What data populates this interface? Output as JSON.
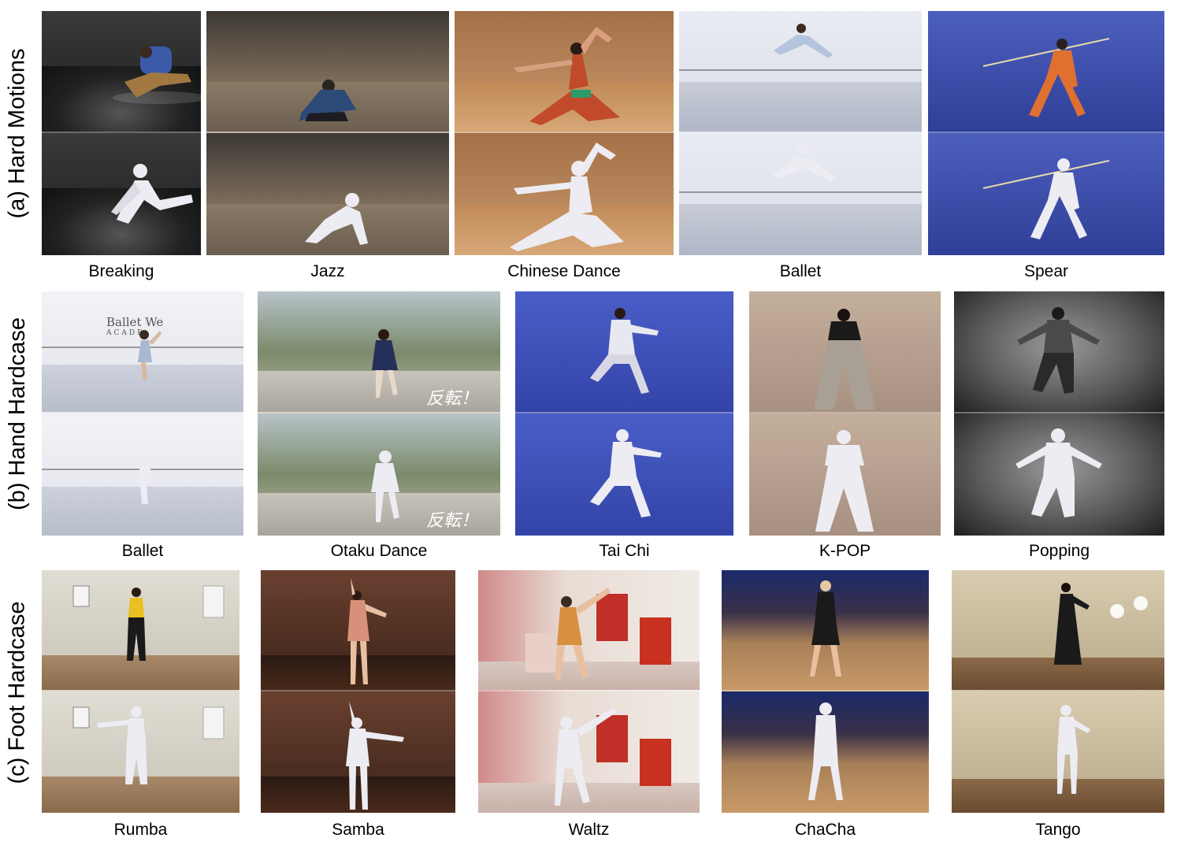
{
  "rows": [
    {
      "label": "(a) Hard Motions",
      "tiles": [
        {
          "caption": "Breaking"
        },
        {
          "caption": "Jazz"
        },
        {
          "caption": "Chinese Dance"
        },
        {
          "caption": "Ballet"
        },
        {
          "caption": "Spear"
        }
      ]
    },
    {
      "label": "(b) Hand Hardcase",
      "tiles": [
        {
          "caption": "Ballet",
          "sign": "Ballet We",
          "sign2": "ACADE"
        },
        {
          "caption": "Otaku Dance",
          "overlay": "反転！"
        },
        {
          "caption": "Tai Chi"
        },
        {
          "caption": "K-POP"
        },
        {
          "caption": "Popping"
        }
      ]
    },
    {
      "label": "(c) Foot Hardcase",
      "tiles": [
        {
          "caption": "Rumba"
        },
        {
          "caption": "Samba"
        },
        {
          "caption": "Waltz"
        },
        {
          "caption": "ChaCha"
        },
        {
          "caption": "Tango"
        }
      ]
    }
  ],
  "colors": {
    "mesh": "#e8e8ee",
    "person": "#2a2a3a"
  }
}
